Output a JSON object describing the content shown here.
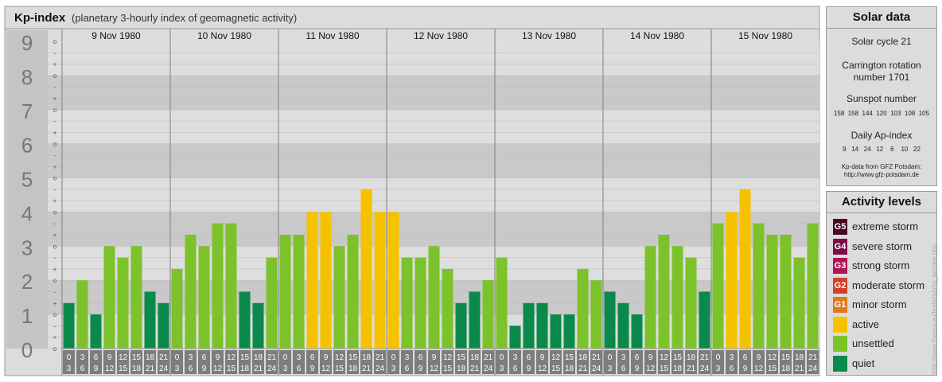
{
  "title": "Kp-index",
  "subtitle": "(planetary 3-hourly index of geomagnetic activity)",
  "colors": {
    "quiet": "#0a8a4a",
    "unsettled": "#7cc22a",
    "active": "#f6c200",
    "minor_storm": "#e07a1c",
    "moderate_storm": "#d2402a",
    "strong_storm": "#b0135a",
    "severe_storm": "#7a0c48",
    "extreme_storm": "#4a0526"
  },
  "chart_data": {
    "type": "bar",
    "ylim": [
      0,
      9
    ],
    "y_ticks": [
      "0",
      "1",
      "2",
      "3",
      "4",
      "5",
      "6",
      "7",
      "8",
      "9"
    ],
    "sublevel_marks": [
      "o",
      "+",
      "-"
    ],
    "days": [
      "9 Nov 1980",
      "10 Nov 1980",
      "11 Nov 1980",
      "12 Nov 1980",
      "13 Nov 1980",
      "14 Nov 1980",
      "15 Nov 1980"
    ],
    "interval_starts": [
      "0",
      "3",
      "6",
      "9",
      "12",
      "15",
      "18",
      "21"
    ],
    "interval_ends": [
      "3",
      "6",
      "9",
      "12",
      "15",
      "18",
      "21",
      "24"
    ],
    "values": [
      [
        1.333,
        2,
        1,
        3,
        2.667,
        3,
        1.667,
        1.333
      ],
      [
        2.333,
        3.333,
        3,
        3.667,
        3.667,
        1.667,
        1.333,
        2.667
      ],
      [
        3.333,
        3.333,
        4,
        4,
        3,
        3.333,
        4.667,
        4
      ],
      [
        4,
        2.667,
        2.667,
        3,
        2.333,
        1.333,
        1.667,
        2
      ],
      [
        2.667,
        0.667,
        1.333,
        1.333,
        1,
        1,
        2.333,
        2
      ],
      [
        1.667,
        1.333,
        1,
        3,
        3.333,
        3,
        2.667,
        1.667
      ],
      [
        3.667,
        4,
        4.667,
        3.667,
        3.333,
        3.333,
        2.667,
        3.667
      ]
    ]
  },
  "solar_data": {
    "title": "Solar data",
    "cycle": "Solar cycle 21",
    "carrington_line1": "Carrington rotation",
    "carrington_line2": "number 1701",
    "sunspot_title": "Sunspot number",
    "sunspot_values": "158  158  144  120  103  108  105",
    "ap_title": "Daily Ap-index",
    "ap_values": "9   14   24   12    6    10   22",
    "source_line1": "Kp-data from GFZ Potsdam:",
    "source_line2": "http://www.gfz-potsdam.de"
  },
  "activity_levels": {
    "title": "Activity levels",
    "items": [
      {
        "code": "G5",
        "label": "extreme storm",
        "color": "#4a0526"
      },
      {
        "code": "G4",
        "label": "severe storm",
        "color": "#7a0c48"
      },
      {
        "code": "G3",
        "label": "strong storm",
        "color": "#b0135a"
      },
      {
        "code": "G2",
        "label": "moderate storm",
        "color": "#d2402a"
      },
      {
        "code": "G1",
        "label": "minor storm",
        "color": "#e07a1c"
      },
      {
        "code": "",
        "label": "active",
        "color": "#f6c200"
      },
      {
        "code": "",
        "label": "unsettled",
        "color": "#7cc22a"
      },
      {
        "code": "",
        "label": "quiet",
        "color": "#0a8a4a"
      }
    ]
  },
  "credit": "http://www.theusa.eu/leaflets/php_archive.php"
}
